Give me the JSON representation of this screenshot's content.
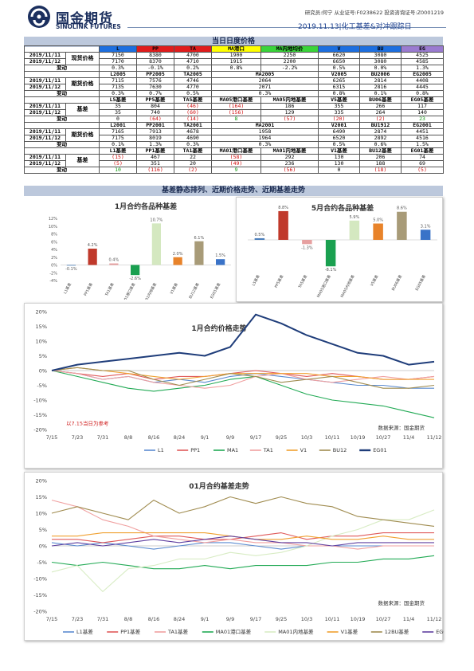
{
  "header": {
    "brand_cn": "国金期货",
    "brand_en": "SINOLINK FUTURES",
    "analyst_line": "研究员:何宁  从业证号:F0238622  投资咨询证号:Z0001219",
    "report_title": "2019.11.13|化工基差&对冲跟踪日"
  },
  "section1_title": "当日日度价格",
  "table": {
    "spot": {
      "label": "现货价格",
      "headers": [
        "L",
        "PP",
        "TA",
        "MA港口",
        "MA内地均价",
        "V",
        "BU",
        "EG"
      ],
      "header_colors": [
        "#1d6fe0",
        "#e01c1c",
        "#e01c1c",
        "#ffff00",
        "#3ad43a",
        "#1d6fe0",
        "#1d6fe0",
        "#9a7bd0"
      ],
      "rows": [
        {
          "date": "2019/11/11",
          "values": [
            "7150",
            "8380",
            "4700",
            "1900",
            "2250",
            "6620",
            "3080",
            "4525"
          ]
        },
        {
          "date": "2019/11/12",
          "values": [
            "7170",
            "8370",
            "4710",
            "1915",
            "2200",
            "6650",
            "3080",
            "4585"
          ]
        }
      ],
      "change": {
        "label": "变动",
        "values": [
          "0.3%",
          "-0.1%",
          "0.2%",
          "0.8%",
          "-2.2%",
          "0.5%",
          "0.0%",
          "1.3%"
        ]
      }
    },
    "fut05": {
      "label": "期货价格",
      "headers": [
        "L2005",
        "PP2005",
        "TA2005",
        "MA2005",
        "V2005",
        "BU2006",
        "EG2005"
      ],
      "rows": [
        {
          "date": "2019/11/11",
          "values": [
            "7115",
            "7576",
            "4746",
            "2064",
            "6265",
            "2814",
            "4408"
          ]
        },
        {
          "date": "2019/11/12",
          "values": [
            "7135",
            "7630",
            "4770",
            "2071",
            "6315",
            "2816",
            "4445"
          ]
        }
      ],
      "change": {
        "label": "变动",
        "values": [
          "0.3%",
          "0.7%",
          "0.5%",
          "0.3%",
          "0.8%",
          "0.1%",
          "0.8%"
        ]
      }
    },
    "basis05": {
      "label": "基差",
      "headers": [
        "L5基差",
        "PP5基差",
        "TA5基差",
        "MA05港口基差",
        "MA05内地基差",
        "V5基差",
        "BU06基差",
        "EG05基差"
      ],
      "rows": [
        {
          "date": "2019/11/11",
          "values": [
            "35",
            "804",
            "(46)",
            "(164)",
            "186",
            "355",
            "266",
            "117"
          ]
        },
        {
          "date": "2019/11/12",
          "values": [
            "35",
            "740",
            "(60)",
            "(156)",
            "129",
            "335",
            "264",
            "140"
          ]
        }
      ],
      "change": {
        "label": "变动",
        "values": [
          "0",
          "(64)",
          "(14)",
          "8",
          "(57)",
          "(20)",
          "(2)",
          "23"
        ]
      }
    },
    "fut01": {
      "label": "期货价格",
      "headers": [
        "L2001",
        "PP2001",
        "TA2001",
        "MA2001",
        "V2001",
        "BU1912",
        "EG2001"
      ],
      "rows": [
        {
          "date": "2019/11/11",
          "values": [
            "7165",
            "7913",
            "4678",
            "1958",
            "6490",
            "2874",
            "4451"
          ]
        },
        {
          "date": "2019/11/12",
          "values": [
            "7175",
            "8019",
            "4690",
            "1964",
            "6520",
            "2892",
            "4516"
          ]
        }
      ],
      "change": {
        "label": "变动",
        "values": [
          "0.1%",
          "1.3%",
          "0.3%",
          "0.3%",
          "0.5%",
          "0.6%",
          "1.5%"
        ]
      }
    },
    "basis01": {
      "label": "基差",
      "headers": [
        "L1基差",
        "PP1基差",
        "TA1基差",
        "MA01港口基差",
        "MA01内地基差",
        "V1基差",
        "BU12基差",
        "EG01基差"
      ],
      "rows": [
        {
          "date": "2019/11/11",
          "values": [
            "(15)",
            "467",
            "22",
            "(58)",
            "292",
            "130",
            "206",
            "74"
          ]
        },
        {
          "date": "2019/11/12",
          "values": [
            "(5)",
            "351",
            "20",
            "(49)",
            "236",
            "130",
            "188",
            "69"
          ]
        }
      ],
      "change": {
        "label": "变动",
        "values": [
          "10",
          "(116)",
          "(2)",
          "9",
          "(56)",
          "0",
          "(18)",
          "(5)"
        ]
      }
    }
  },
  "section2_title": "基差静态排列、近期价格走势、近期基差走势",
  "chart_data": [
    {
      "type": "bar",
      "title": "1月合约各品种基差",
      "categories": [
        "L1基差",
        "PP1基差",
        "TA1基差",
        "MA01港口基差",
        "MA01内地基差",
        "V1基差",
        "BU12基差",
        "EG01基差"
      ],
      "values": [
        -0.1,
        4.2,
        0.4,
        -2.6,
        10.7,
        2.0,
        6.1,
        1.5
      ],
      "value_labels": [
        "-0.1%",
        "4.2%",
        "0.4%",
        "-2.6%",
        "10.7%",
        "2.0%",
        "6.1%",
        "1.5%"
      ],
      "colors": [
        "#4a7ebb",
        "#c0392b",
        "#e6a0a0",
        "#1aa050",
        "#d4e8c0",
        "#e8832a",
        "#a89b78",
        "#3a73c8"
      ],
      "ylim": [
        -4,
        12
      ],
      "yticks": [
        "12%",
        "10%",
        "8%",
        "6%",
        "4%",
        "2%",
        "0%",
        "-2%",
        "-4%"
      ]
    },
    {
      "type": "bar",
      "title": "5月合约各品种基差",
      "categories": [
        "L5基差",
        "PP5基差",
        "TA5基差",
        "MA05港口基差",
        "MA05内地基差",
        "V5基差",
        "BU06基差",
        "EG05基差"
      ],
      "values": [
        0.5,
        8.8,
        -1.3,
        -8.1,
        5.9,
        5.0,
        8.6,
        3.1
      ],
      "value_labels": [
        "0.5%",
        "8.8%",
        "-1.3%",
        "-8.1%",
        "5.9%",
        "5.0%",
        "8.6%",
        "3.1%"
      ],
      "colors": [
        "#4a7ebb",
        "#c0392b",
        "#e6a0a0",
        "#1aa050",
        "#d4e8c0",
        "#e8832a",
        "#a89b78",
        "#3a73c8"
      ],
      "ylim": [
        -10,
        10
      ]
    },
    {
      "type": "line",
      "title": "1月合约价格走势",
      "annotation": "以7.15当日为参考",
      "source": "数据来源：国金期货",
      "x": [
        "7/15",
        "7/23",
        "7/31",
        "8/8",
        "8/16",
        "8/24",
        "9/1",
        "9/9",
        "9/17",
        "9/25",
        "10/3",
        "10/11",
        "10/19",
        "10/27",
        "11/4",
        "11/12"
      ],
      "yticks": [
        "20%",
        "15%",
        "10%",
        "5%",
        "0%",
        "-5%",
        "-10%",
        "-15%",
        "-20%"
      ],
      "ylim": [
        -20,
        20
      ],
      "series": [
        {
          "name": "L1",
          "color": "#5b8bd0",
          "values": [
            0,
            -1,
            -3,
            -2,
            -4,
            -3,
            -4,
            -2,
            -1,
            -2,
            -3,
            -4,
            -5,
            -5,
            -6,
            -6
          ]
        },
        {
          "name": "PP1",
          "color": "#e05a5a",
          "values": [
            0,
            -1,
            -2,
            -1,
            -3,
            -2,
            -2,
            -1,
            0,
            -1,
            -2,
            -1,
            -2,
            -3,
            -3,
            -2
          ]
        },
        {
          "name": "MA1",
          "color": "#22aa55",
          "values": [
            0,
            -2,
            -4,
            -6,
            -7,
            -6,
            -5,
            -3,
            -2,
            -5,
            -8,
            -10,
            -11,
            -12,
            -14,
            -16
          ]
        },
        {
          "name": "TA1",
          "color": "#f0a0a0",
          "values": [
            0,
            -1,
            -3,
            -2,
            -4,
            -5,
            -6,
            -5,
            -2,
            -1,
            -3,
            -4,
            -3,
            -2,
            -3,
            -2
          ]
        },
        {
          "name": "V1",
          "color": "#f0a030",
          "values": [
            0,
            1,
            0,
            -1,
            -2,
            -3,
            -2,
            -1,
            -1,
            -1,
            -1,
            -2,
            -2,
            -3,
            -3,
            -3
          ]
        },
        {
          "name": "BU12",
          "color": "#a08c50",
          "values": [
            0,
            1,
            0,
            0,
            -3,
            -5,
            -3,
            -1,
            -2,
            -4,
            -3,
            -2,
            -4,
            -6,
            -6,
            -5
          ]
        },
        {
          "name": "EG01",
          "color": "#1f3d7a",
          "values": [
            0,
            2,
            3,
            4,
            5,
            6,
            5,
            8,
            19,
            16,
            12,
            9,
            6,
            5,
            2,
            3
          ]
        }
      ]
    },
    {
      "type": "line",
      "title": "01月合约基差走势",
      "source": "数据来源：国金期货",
      "x": [
        "7/15",
        "7/23",
        "7/31",
        "8/8",
        "8/16",
        "8/24",
        "9/1",
        "9/9",
        "9/17",
        "9/25",
        "10/3",
        "10/11",
        "10/19",
        "10/27",
        "11/4",
        "11/12"
      ],
      "yticks": [
        "20%",
        "15%",
        "10%",
        "5%",
        "0%",
        "-5%",
        "-10%",
        "-15%",
        "-20%"
      ],
      "ylim": [
        -20,
        20
      ],
      "series": [
        {
          "name": "L1基差",
          "color": "#5b8bd0",
          "values": [
            1,
            0,
            1,
            0,
            -1,
            0,
            1,
            1,
            0,
            -1,
            0,
            0,
            0,
            0,
            0,
            0
          ]
        },
        {
          "name": "PP1基差",
          "color": "#e05a5a",
          "values": [
            2,
            2,
            1,
            2,
            3,
            3,
            2,
            2,
            3,
            4,
            2,
            3,
            3,
            4,
            4,
            4
          ]
        },
        {
          "name": "TA1基差",
          "color": "#f0a0a0",
          "values": [
            14,
            12,
            8,
            6,
            3,
            2,
            1,
            2,
            1,
            1,
            0,
            0,
            -1,
            0,
            0,
            0
          ]
        },
        {
          "name": "MA01港口基差",
          "color": "#22aa55",
          "values": [
            -5,
            -6,
            -5,
            -6,
            -7,
            -7,
            -6,
            -7,
            -6,
            -6,
            -6,
            -5,
            -5,
            -4,
            -4,
            -3
          ]
        },
        {
          "name": "MA01内地基差",
          "color": "#d8ecc4",
          "values": [
            -8,
            -6,
            -14,
            -7,
            -6,
            -4,
            -4,
            -2,
            -3,
            -2,
            0,
            3,
            5,
            8,
            8,
            11
          ]
        },
        {
          "name": "V1基差",
          "color": "#f0a030",
          "values": [
            3,
            3,
            4,
            4,
            4,
            4,
            4,
            3,
            2,
            2,
            3,
            2,
            2,
            3,
            2,
            2
          ]
        },
        {
          "name": "12BU基差",
          "color": "#a08c50",
          "values": [
            10,
            12,
            10,
            8,
            14,
            10,
            12,
            15,
            13,
            15,
            13,
            12,
            9,
            8,
            7,
            6
          ]
        },
        {
          "name": "EG01基差",
          "color": "#6040a0",
          "values": [
            0,
            1,
            0,
            1,
            2,
            1,
            2,
            3,
            2,
            1,
            1,
            0,
            1,
            1,
            1,
            1
          ]
        }
      ]
    }
  ]
}
